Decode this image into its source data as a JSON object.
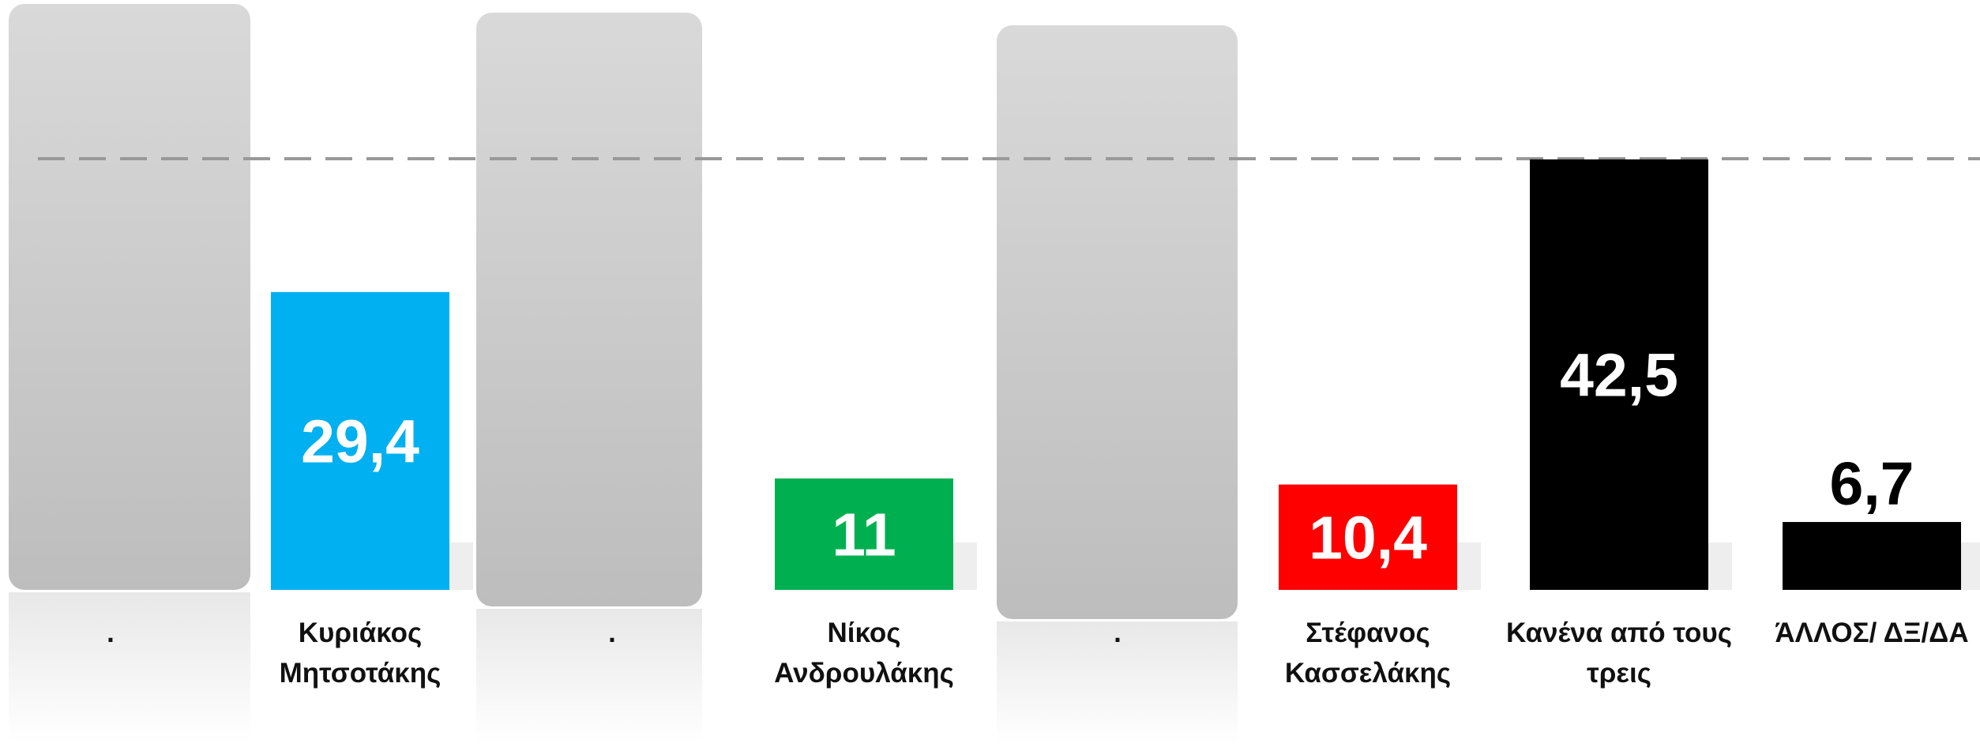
{
  "chart_data": {
    "type": "bar",
    "categories": [
      ".",
      "Κυριάκος Μητσοτάκης",
      ".",
      "Νίκος Ανδρουλάκης",
      ".",
      "Στέφανος Κασσελάκης",
      "Κανένα από τους τρεις",
      "ΆΛΛΟΣ/ ΔΞ/ΔΑ"
    ],
    "values": [
      null,
      29.4,
      null,
      11,
      null,
      10.4,
      42.5,
      6.7
    ],
    "value_labels": [
      null,
      "29,4",
      null,
      "11",
      null,
      "10,4",
      "42,5",
      "6,7"
    ],
    "colors": [
      null,
      "#00b0f0",
      null,
      "#00b050",
      null,
      "#ff0000",
      "#000000",
      "#000000"
    ],
    "ylim": [
      0,
      58
    ]
  }
}
